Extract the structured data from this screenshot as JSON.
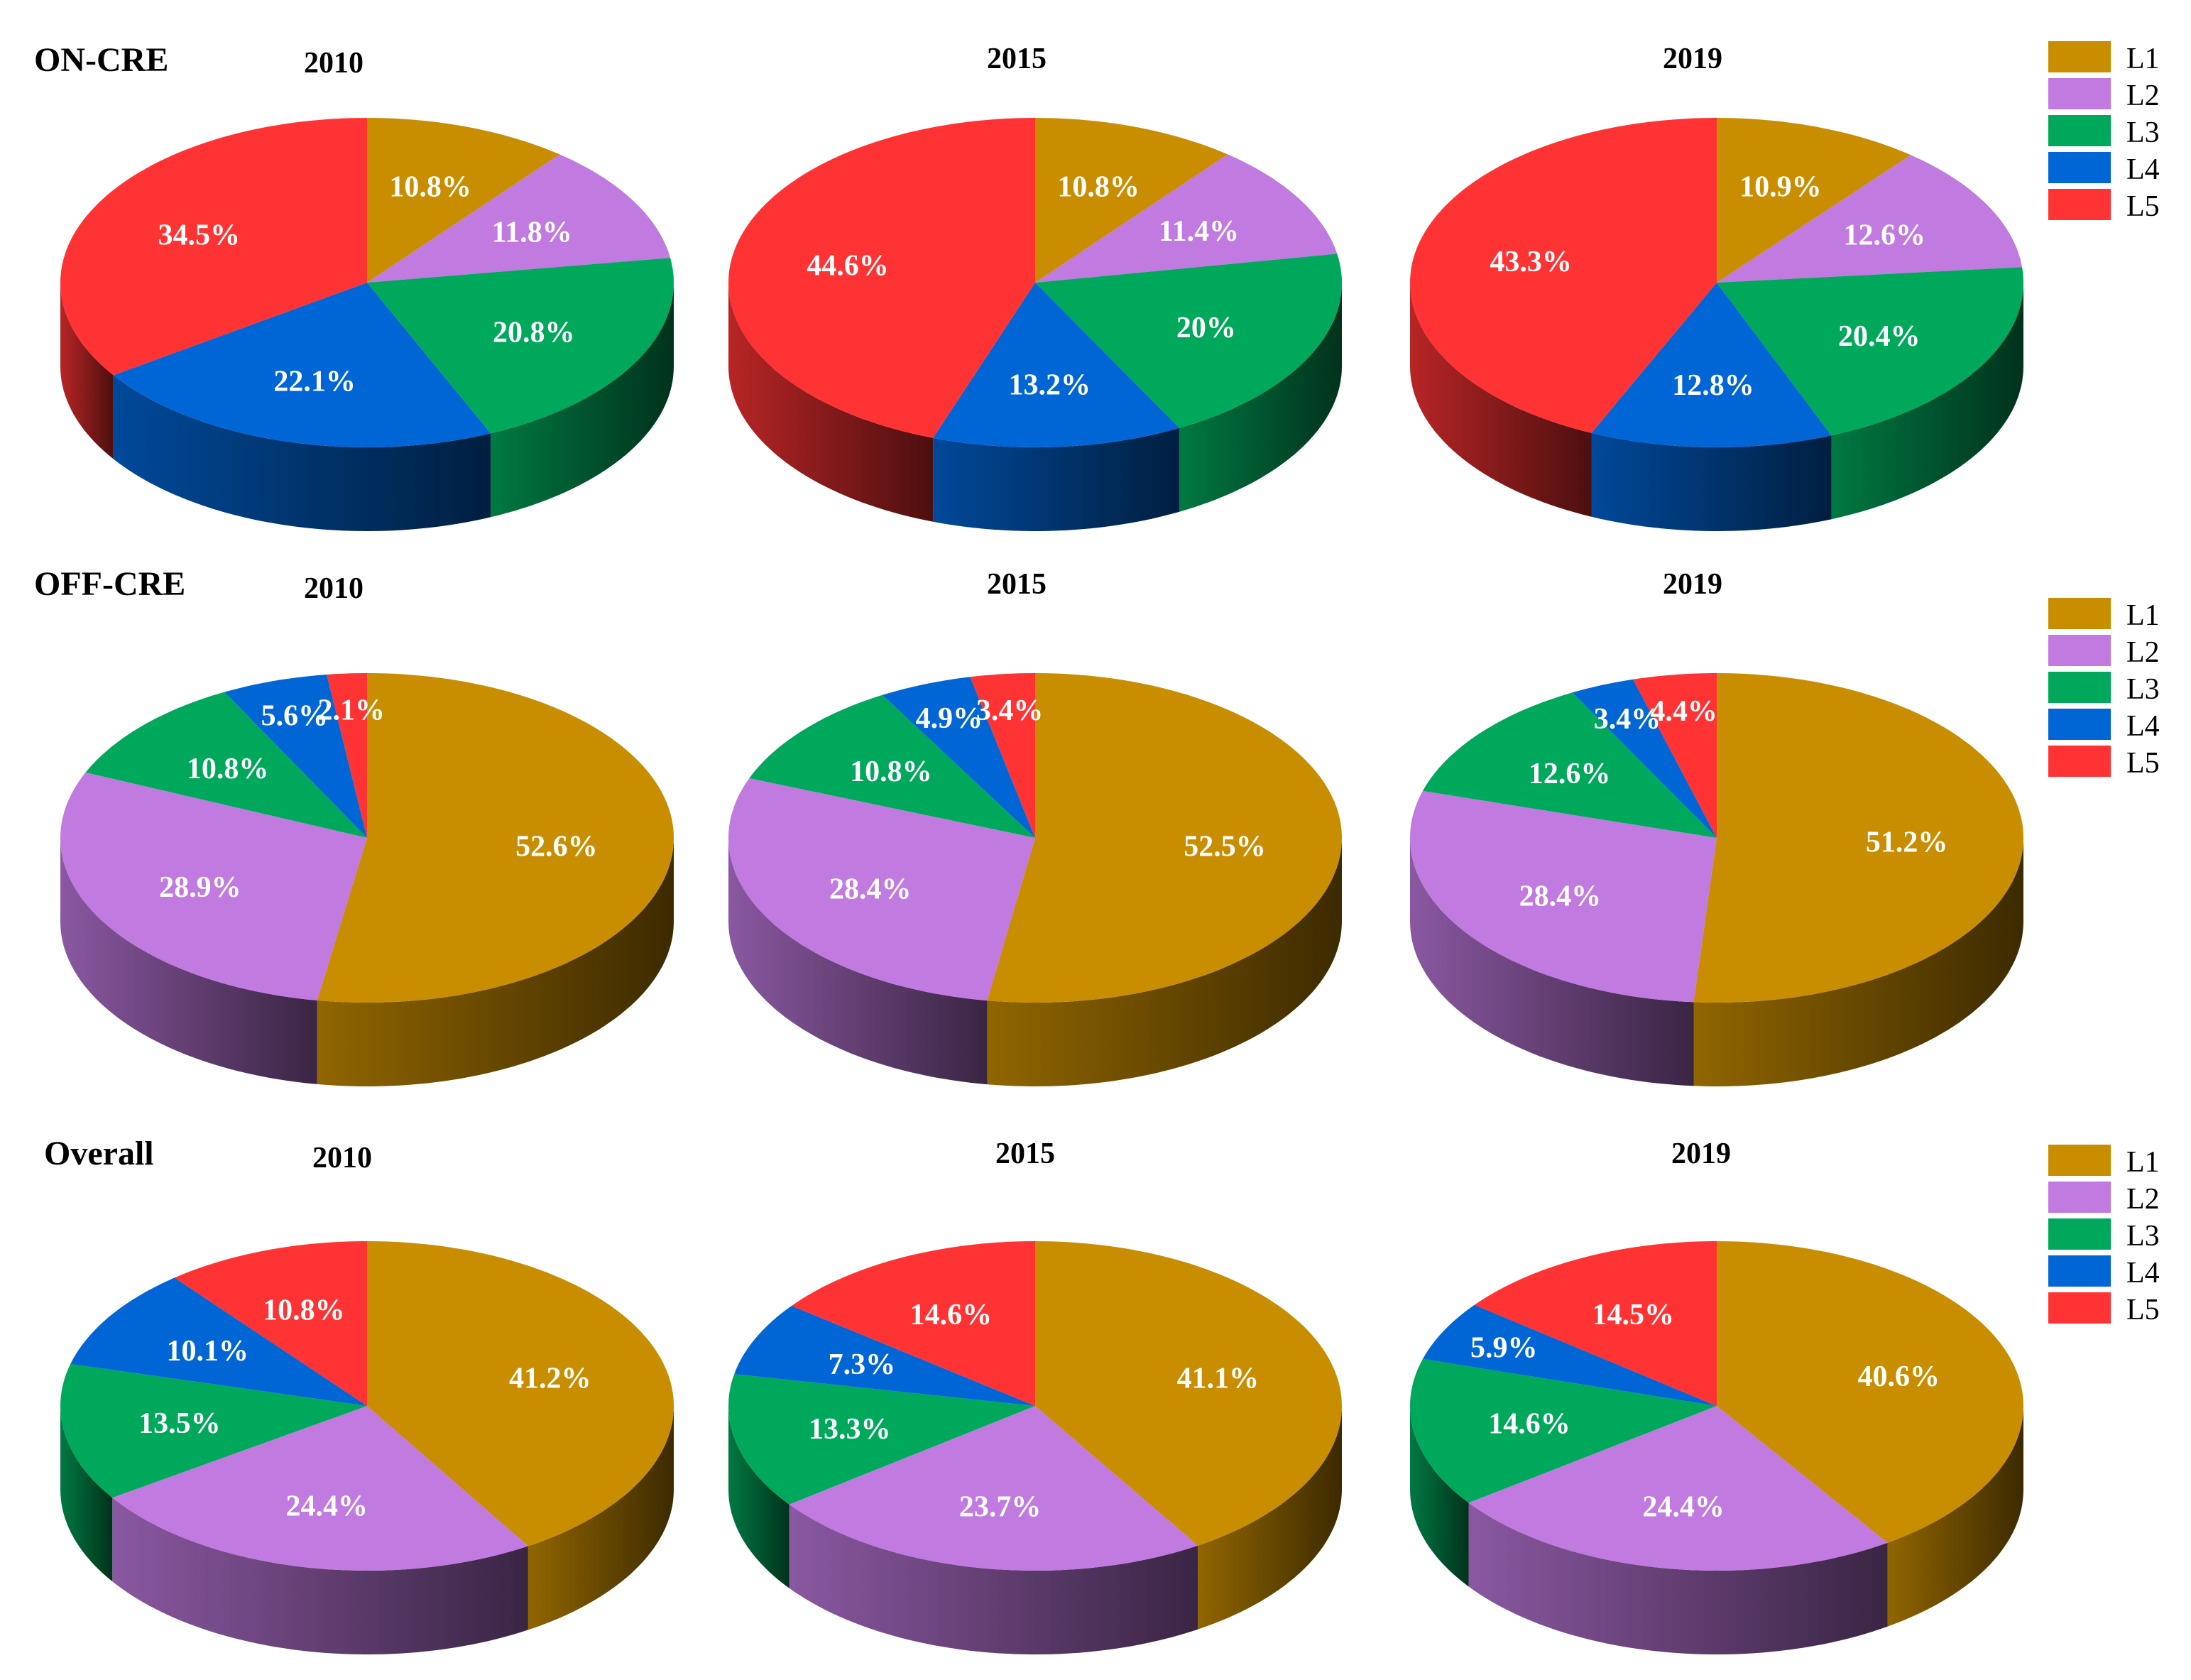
{
  "colors": {
    "L1": "#c98d00",
    "L2": "#c07ae0",
    "L3": "#00a85c",
    "L4": "#0066d6",
    "L5": "#ff3333"
  },
  "legend": [
    "L1",
    "L2",
    "L3",
    "L4",
    "L5"
  ],
  "chart_data": [
    {
      "type": "pie",
      "title": "ON-CRE",
      "pies": [
        {
          "year": "2010",
          "labels": [
            "L1",
            "L2",
            "L3",
            "L4",
            "L5"
          ],
          "values": [
            10.8,
            11.8,
            20.8,
            22.1,
            34.5
          ],
          "value_labels": [
            "10.8%",
            "11.8%",
            "20.8%",
            "22.1%",
            "34.5%"
          ]
        },
        {
          "year": "2015",
          "labels": [
            "L1",
            "L2",
            "L3",
            "L4",
            "L5"
          ],
          "values": [
            10.8,
            11.4,
            20,
            13.2,
            44.6
          ],
          "value_labels": [
            "10.8%",
            "11.4%",
            "20%",
            "13.2%",
            "44.6%"
          ]
        },
        {
          "year": "2019",
          "labels": [
            "L1",
            "L2",
            "L3",
            "L4",
            "L5"
          ],
          "values": [
            10.9,
            12.6,
            20.4,
            12.8,
            43.3
          ],
          "value_labels": [
            "10.9%",
            "12.6%",
            "20.4%",
            "12.8%",
            "43.3%"
          ]
        }
      ]
    },
    {
      "type": "pie",
      "title": "OFF-CRE",
      "pies": [
        {
          "year": "2010",
          "labels": [
            "L1",
            "L2",
            "L3",
            "L4",
            "L5"
          ],
          "values": [
            52.6,
            28.9,
            10.8,
            5.6,
            2.1
          ],
          "value_labels": [
            "52.6%",
            "28.9%",
            "10.8%",
            "5.6%",
            "2.1%"
          ]
        },
        {
          "year": "2015",
          "labels": [
            "L1",
            "L2",
            "L3",
            "L4",
            "L5"
          ],
          "values": [
            52.5,
            28.4,
            10.8,
            4.9,
            3.4
          ],
          "value_labels": [
            "52.5%",
            "28.4%",
            "10.8%",
            "4.9%",
            "3.4%"
          ]
        },
        {
          "year": "2019",
          "labels": [
            "L1",
            "L2",
            "L3",
            "L4",
            "L5"
          ],
          "values": [
            51.2,
            28.4,
            12.6,
            3.4,
            4.4
          ],
          "value_labels": [
            "51.2%",
            "28.4%",
            "12.6%",
            "3.4%",
            "4.4%"
          ]
        }
      ]
    },
    {
      "type": "pie",
      "title": "Overall",
      "pies": [
        {
          "year": "2010",
          "labels": [
            "L1",
            "L2",
            "L3",
            "L4",
            "L5"
          ],
          "values": [
            41.2,
            24.4,
            13.5,
            10.1,
            10.8
          ],
          "value_labels": [
            "41.2%",
            "24.4%",
            "13.5%",
            "10.1%",
            "10.8%"
          ]
        },
        {
          "year": "2015",
          "labels": [
            "L1",
            "L2",
            "L3",
            "L4",
            "L5"
          ],
          "values": [
            41.1,
            23.7,
            13.3,
            7.3,
            14.6
          ],
          "value_labels": [
            "41.1%",
            "23.7%",
            "13.3%",
            "7.3%",
            "14.6%"
          ]
        },
        {
          "year": "2019",
          "labels": [
            "L1",
            "L2",
            "L3",
            "L4",
            "L5"
          ],
          "values": [
            40.6,
            24.4,
            14.6,
            5.9,
            14.5
          ],
          "value_labels": [
            "40.6%",
            "24.4%",
            "14.6%",
            "5.9%",
            "14.5%"
          ]
        }
      ]
    }
  ]
}
